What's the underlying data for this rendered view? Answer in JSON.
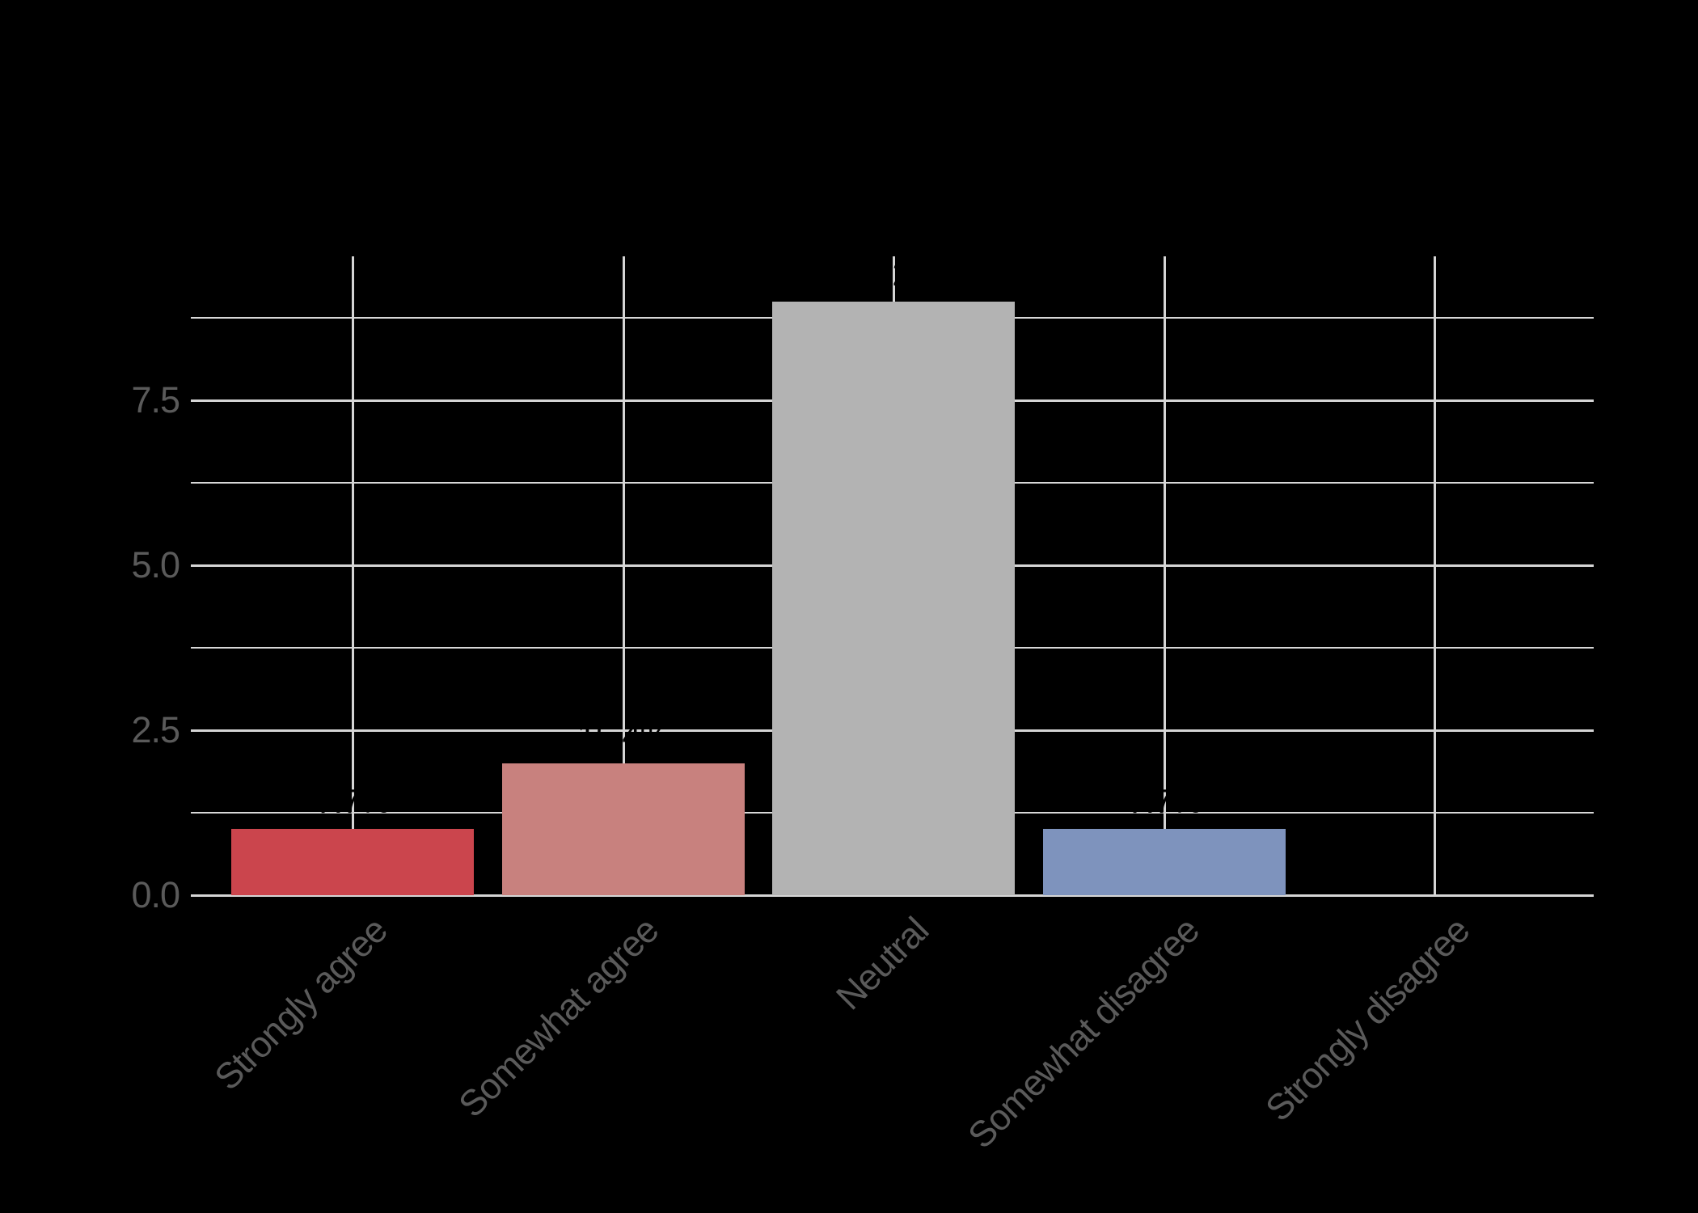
{
  "figure": {
    "background_color": "#000000",
    "gridline_color": "#D5D5D5",
    "axis_text_color": "#5A5A5A"
  },
  "chart_data": {
    "type": "bar",
    "title": "",
    "xlabel": "",
    "ylabel": "",
    "categories": [
      "Strongly agree",
      "Somewhat agree",
      "Neutral",
      "Somewhat disagree",
      "Strongly disagree"
    ],
    "values": [
      1,
      2,
      9,
      1,
      0
    ],
    "percent_labels": [
      "7.7%",
      "15.4%",
      "69.2%",
      "7.7%",
      ""
    ],
    "bar_colors": [
      "#CB454D",
      "#C8817E",
      "#B3B3B3",
      "#7E93BD",
      null
    ],
    "value_label_color": "#000000",
    "ytick_values": [
      0,
      2.5,
      5,
      7.5
    ],
    "ytick_labels": [
      "0.0",
      "2.5",
      "5.0",
      "7.5"
    ],
    "minor_gridline_values": [
      1.25,
      3.75,
      6.25,
      8.75
    ],
    "ylim": [
      0,
      9.7
    ],
    "grid": "horizontal-major-minor plus vertical-major at each category",
    "legend_position": "none",
    "x_label_rotation_deg": 45,
    "bar_gap_note": "no bar drawn for Strongly disagree (value 0)"
  }
}
